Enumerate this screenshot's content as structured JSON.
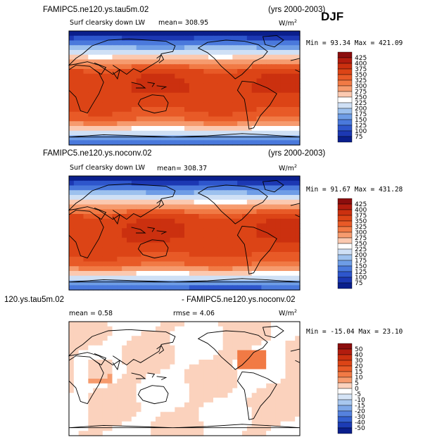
{
  "season": "DJF",
  "panels": [
    {
      "case": "FAMIPC5.ne120.ys.tau5m.02",
      "years": "(yrs 2000-2003)",
      "variable": "Surf clearsky down LW",
      "stat1": "mean=  308.95",
      "stat2": "",
      "units": "W/m",
      "units_sup": "2",
      "minmax": "Min =  93.34 Max = 421.09",
      "colorbar": {
        "labels": [
          "425",
          "400",
          "375",
          "350",
          "325",
          "300",
          "275",
          "250",
          "225",
          "200",
          "175",
          "150",
          "125",
          "100",
          "75"
        ],
        "colors": [
          "#8b0d0d",
          "#b21c0e",
          "#cb300f",
          "#dc4416",
          "#e85a27",
          "#f17a45",
          "#f69b6e",
          "#fbc9b0",
          "#ffffff",
          "#cfe0f5",
          "#9dc1ee",
          "#6e9de6",
          "#4a79dc",
          "#2e56cc",
          "#1c38b3",
          "#0a1f8c"
        ]
      },
      "map_type": "absolute"
    },
    {
      "case": "FAMIPC5.ne120.ys.noconv.02",
      "years": "(yrs 2000-2003)",
      "variable": "Surf clearsky down LW",
      "stat1": "mean=  308.37",
      "stat2": "",
      "units": "W/m",
      "units_sup": "2",
      "minmax": "Min =  91.67 Max = 431.28",
      "colorbar": {
        "labels": [
          "425",
          "400",
          "375",
          "350",
          "325",
          "300",
          "275",
          "250",
          "225",
          "200",
          "175",
          "150",
          "125",
          "100",
          "75"
        ],
        "colors": [
          "#8b0d0d",
          "#b21c0e",
          "#cb300f",
          "#dc4416",
          "#e85a27",
          "#f17a45",
          "#f69b6e",
          "#fbc9b0",
          "#ffffff",
          "#cfe0f5",
          "#9dc1ee",
          "#6e9de6",
          "#4a79dc",
          "#2e56cc",
          "#1c38b3",
          "#0a1f8c"
        ]
      },
      "map_type": "absolute"
    },
    {
      "case": "120.ys.tau5m.02",
      "years": "- FAMIPC5.ne120.ys.noconv.02",
      "variable": "",
      "stat1": "mean =   0.58",
      "stat2": "rmse =   4.06",
      "units": "W/m",
      "units_sup": "2",
      "minmax": "Min = -15.04  Max =  23.10",
      "colorbar": {
        "labels": [
          "50",
          "40",
          "30",
          "20",
          "15",
          "10",
          "5",
          "0",
          "-5",
          "-10",
          "-15",
          "-20",
          "-30",
          "-40",
          "-50"
        ],
        "colors": [
          "#8b0d0d",
          "#b21c0e",
          "#cb300f",
          "#dc4416",
          "#e85a27",
          "#f17a45",
          "#f69b6e",
          "#fbd2bd",
          "#ffffff",
          "#d5e4f6",
          "#a8c7ef",
          "#7ea7e8",
          "#5582de",
          "#335fcf",
          "#1c3cb5",
          "#0a1f8c"
        ]
      },
      "map_type": "difference"
    }
  ]
}
